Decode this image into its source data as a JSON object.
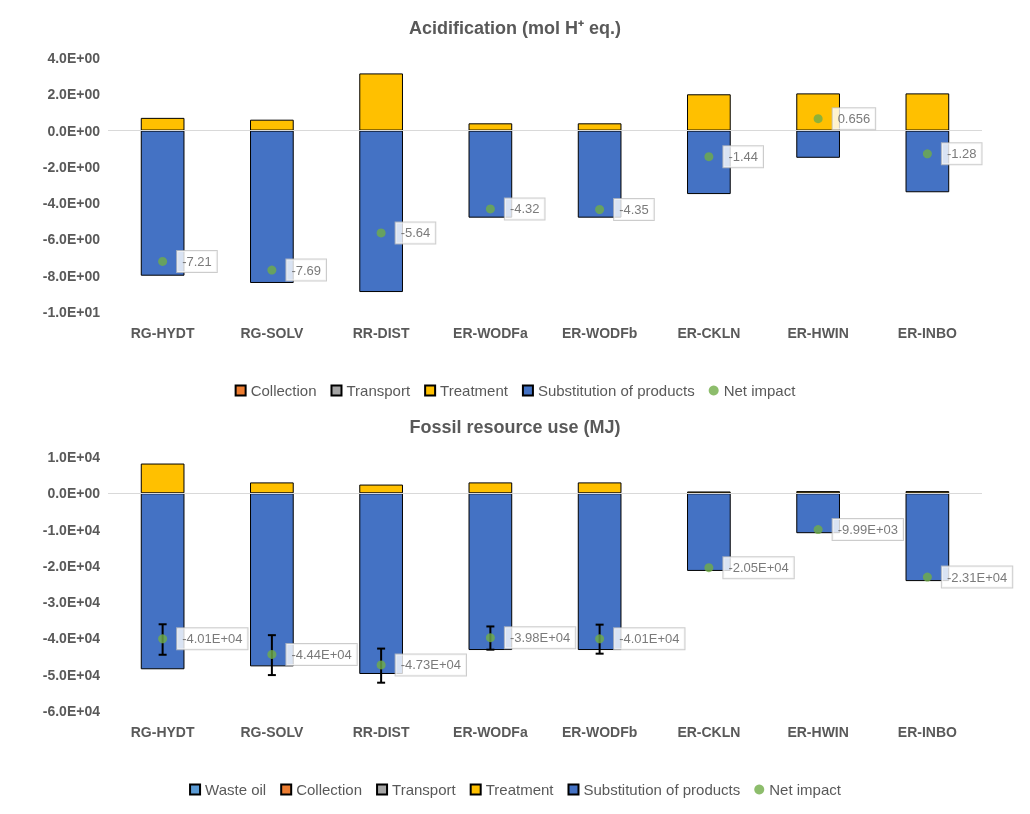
{
  "chart_data": [
    {
      "type": "bar",
      "title": "Acidification (mol H⁺ eq.)",
      "stacked": true,
      "legend": "bottom",
      "grid": false,
      "ref_lines": [
        {
          "axis": "y",
          "value": 0,
          "color": "#d9d9d9"
        }
      ],
      "categories": [
        "RG-HYDT",
        "RG-SOLV",
        "RR-DIST",
        "ER-WODFa",
        "ER-WODFb",
        "ER-CKLN",
        "ER-HWIN",
        "ER-INBO"
      ],
      "ylim": [
        -10,
        4
      ],
      "yticks": [
        {
          "value": -10,
          "label": "-1.0E+01"
        },
        {
          "value": -8,
          "label": "-8.0E+00"
        },
        {
          "value": -6,
          "label": "-6.0E+00"
        },
        {
          "value": -4,
          "label": "-4.0E+00"
        },
        {
          "value": -2,
          "label": "-2.0E+00"
        },
        {
          "value": 0,
          "label": "0.0E+00"
        },
        {
          "value": 2,
          "label": "2.0E+00"
        },
        {
          "value": 4,
          "label": "4.0E+00"
        }
      ],
      "series": [
        {
          "name": "Collection",
          "color": "#ed7d31",
          "values": [
            null,
            null,
            null,
            null,
            null,
            null,
            null,
            null
          ]
        },
        {
          "name": "Transport",
          "color": "#a5a5a5",
          "values": [
            null,
            null,
            null,
            null,
            null,
            null,
            null,
            null
          ]
        },
        {
          "name": "Treatment",
          "color": "#ffc000",
          "values": [
            0.7,
            0.6,
            3.15,
            0.4,
            0.4,
            2.0,
            2.05,
            2.05
          ]
        },
        {
          "name": "Substitution of products",
          "color": "#4472c4",
          "values": [
            -8.0,
            -8.4,
            -8.9,
            -4.8,
            -4.8,
            -3.5,
            -1.5,
            -3.4
          ]
        },
        {
          "name": "Net impact",
          "type": "scatter",
          "color": "#70ad47",
          "x": [
            "RG-HYDT",
            "RG-SOLV",
            "RR-DIST",
            "ER-WODFa",
            "ER-WODFb",
            "ER-CKLN",
            "ER-HWIN",
            "ER-INBO"
          ],
          "values": [
            -7.21,
            -7.69,
            -5.64,
            -4.32,
            -4.35,
            -1.44,
            0.656,
            -1.28
          ],
          "value_labels": [
            "-7.21",
            "-7.69",
            "-5.64",
            "-4.32",
            "-4.35",
            "-1.44",
            "0.656",
            "-1.28"
          ]
        }
      ]
    },
    {
      "type": "bar",
      "title": "Fossil resource use (MJ)",
      "stacked": true,
      "legend": "bottom",
      "grid": false,
      "ref_lines": [
        {
          "axis": "y",
          "value": 0,
          "color": "#d9d9d9"
        }
      ],
      "categories": [
        "RG-HYDT",
        "RG-SOLV",
        "RR-DIST",
        "ER-WODFa",
        "ER-WODFb",
        "ER-CKLN",
        "ER-HWIN",
        "ER-INBO"
      ],
      "ylim": [
        -60000,
        10000
      ],
      "yticks": [
        {
          "value": -60000,
          "label": "-6.0E+04"
        },
        {
          "value": -50000,
          "label": "-5.0E+04"
        },
        {
          "value": -40000,
          "label": "-4.0E+04"
        },
        {
          "value": -30000,
          "label": "-3.0E+04"
        },
        {
          "value": -20000,
          "label": "-2.0E+04"
        },
        {
          "value": -10000,
          "label": "-1.0E+04"
        },
        {
          "value": 0,
          "label": "0.0E+00"
        },
        {
          "value": 10000,
          "label": "1.0E+04"
        }
      ],
      "series": [
        {
          "name": "Waste oil",
          "color": "#5b9bd5",
          "values": [
            null,
            null,
            null,
            null,
            null,
            null,
            null,
            null
          ]
        },
        {
          "name": "Collection",
          "color": "#ed7d31",
          "values": [
            null,
            null,
            null,
            null,
            null,
            null,
            null,
            null
          ]
        },
        {
          "name": "Transport",
          "color": "#a5a5a5",
          "values": [
            null,
            null,
            null,
            null,
            null,
            null,
            null,
            null
          ]
        },
        {
          "name": "Treatment",
          "color": "#ffc000",
          "values": [
            8200,
            3000,
            2400,
            3000,
            3000,
            500,
            600,
            600
          ]
        },
        {
          "name": "Substitution of products",
          "color": "#4472c4",
          "values": [
            -48500,
            -47700,
            -49800,
            -43200,
            -43200,
            -21400,
            -11000,
            -24200
          ]
        },
        {
          "name": "Net impact",
          "type": "scatter",
          "color": "#70ad47",
          "x": [
            "RG-HYDT",
            "RG-SOLV",
            "RR-DIST",
            "ER-WODFa",
            "ER-WODFb",
            "ER-CKLN",
            "ER-HWIN",
            "ER-INBO"
          ],
          "values": [
            -40100,
            -44400,
            -47300,
            -39800,
            -40100,
            -20500,
            -9990,
            -23100
          ],
          "value_labels": [
            "-4.01E+04",
            "-4.44E+04",
            "-4.73E+04",
            "-3.98E+04",
            "-4.01E+04",
            "-2.05E+04",
            "-9.99E+03",
            "-2.31E+04"
          ],
          "errors": [
            [
              -44500,
              -36100
            ],
            [
              -50100,
              -39100
            ],
            [
              -52200,
              -42800
            ],
            [
              -43100,
              -36700
            ],
            [
              -44200,
              -36200
            ],
            null,
            null,
            null
          ]
        }
      ]
    }
  ]
}
